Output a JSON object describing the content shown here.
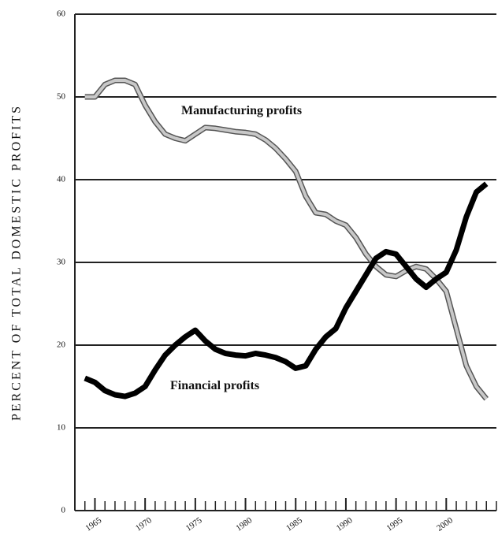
{
  "chart_data": {
    "type": "line",
    "y_label": "PERCENT OF TOTAL DOMESTIC PROFITS",
    "annotations": [
      "Manufacturing profits",
      "Financial profits"
    ],
    "x": [
      1964,
      1965,
      1966,
      1967,
      1968,
      1969,
      1970,
      1971,
      1972,
      1973,
      1974,
      1975,
      1976,
      1977,
      1978,
      1979,
      1980,
      1981,
      1982,
      1983,
      1984,
      1985,
      1986,
      1987,
      1988,
      1989,
      1990,
      1991,
      1992,
      1993,
      1994,
      1995,
      1996,
      1997,
      1998,
      1999,
      2000,
      2001,
      2002,
      2003,
      2004
    ],
    "series": [
      {
        "name": "Manufacturing profits",
        "color": "#c8c8c8",
        "values": [
          50,
          50,
          51.5,
          52,
          52,
          51.5,
          49,
          47,
          45.5,
          45,
          44.7,
          45.5,
          46.3,
          46.2,
          46,
          45.8,
          45.7,
          45.5,
          44.8,
          43.8,
          42.5,
          41,
          38,
          36,
          35.8,
          35,
          34.5,
          33,
          31,
          29.5,
          28.5,
          28.3,
          29,
          29.5,
          29.2,
          28,
          26.5,
          22,
          17.5,
          15,
          13.5
        ]
      },
      {
        "name": "Financial profits",
        "color": "#000000",
        "values": [
          16,
          15.5,
          14.5,
          14,
          13.8,
          14.2,
          15,
          17,
          18.8,
          20,
          21,
          21.8,
          20.5,
          19.5,
          19,
          18.8,
          18.7,
          19,
          18.8,
          18.5,
          18,
          17.2,
          17.5,
          19.5,
          21,
          22,
          24.5,
          26.5,
          28.5,
          30.5,
          31.3,
          31,
          29.5,
          28,
          27,
          28,
          28.8,
          31.5,
          35.5,
          38.5,
          39.5
        ]
      }
    ],
    "xlim": [
      1963,
      2005
    ],
    "xticks": [
      1965,
      1970,
      1975,
      1980,
      1985,
      1990,
      1995,
      2000
    ],
    "ylim": [
      0,
      60
    ],
    "yticks": [
      0,
      10,
      20,
      30,
      40,
      50,
      60
    ],
    "grid": true
  }
}
